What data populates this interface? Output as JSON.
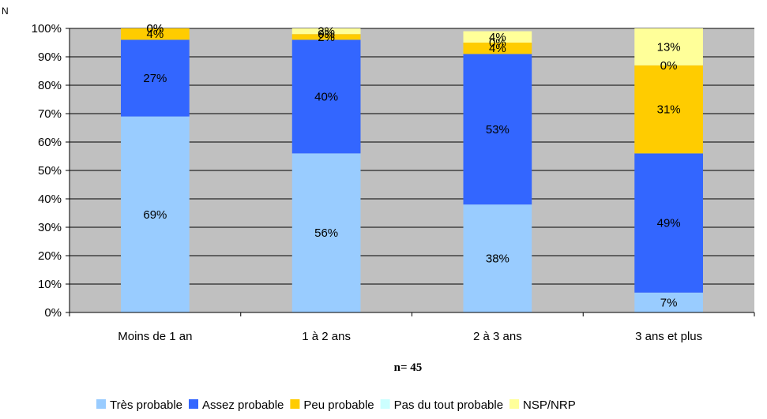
{
  "chart_data": {
    "type": "bar",
    "stacked": true,
    "corner_label": "N",
    "xlabel": "n= 45",
    "ylim": [
      0,
      100
    ],
    "y_ticks": [
      "0%",
      "10%",
      "20%",
      "30%",
      "40%",
      "50%",
      "60%",
      "70%",
      "80%",
      "90%",
      "100%"
    ],
    "grid": true,
    "legend_position": "bottom",
    "categories": [
      "Moins de 1 an",
      "1 à 2 ans",
      "2 à 3 ans",
      "3 ans et plus"
    ],
    "series": [
      {
        "name": "Très probable",
        "color": "#99ccff",
        "values": [
          69,
          56,
          38,
          7
        ],
        "labels": [
          "69%",
          "56%",
          "38%",
          "7%"
        ]
      },
      {
        "name": "Assez probable",
        "color": "#3366ff",
        "values": [
          27,
          40,
          53,
          49
        ],
        "labels": [
          "27%",
          "40%",
          "53%",
          "49%"
        ]
      },
      {
        "name": "Peu probable",
        "color": "#ffcc00",
        "values": [
          4,
          2,
          4,
          31
        ],
        "labels": [
          "4%",
          "2%",
          "4%",
          "31%"
        ]
      },
      {
        "name": "Pas du tout probable",
        "color": "#ccffff",
        "values": [
          0,
          0,
          0,
          0
        ],
        "labels": [
          "0%",
          "0%",
          "0%",
          "0%"
        ]
      },
      {
        "name": "NSP/NRP",
        "color": "#ffff99",
        "values": [
          0,
          2,
          4,
          13
        ],
        "labels": [
          "0%",
          "2%",
          "4%",
          "13%"
        ]
      }
    ],
    "plot_background": "#c0c0c0"
  }
}
